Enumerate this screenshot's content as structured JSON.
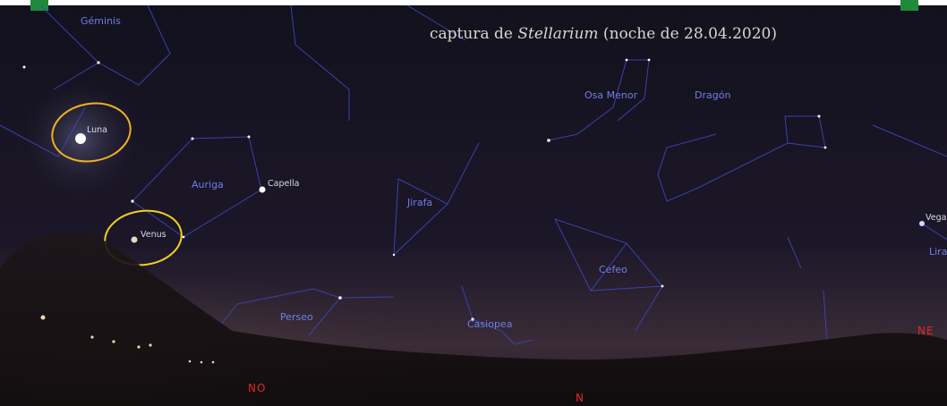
{
  "caption": {
    "prefix": "captura de ",
    "emphasis": "Stellarium",
    "suffix": " (noche de 28.04.2020)"
  },
  "constellations": [
    "Géminis",
    "Auriga",
    "Jirafa",
    "Osa Menor",
    "Dragón",
    "Cefeo",
    "Casiopea",
    "Perseo",
    "Lira"
  ],
  "objects": [
    "Luna",
    "Capella",
    "Venus",
    "Vega"
  ],
  "cardinal": [
    "NO",
    "N",
    "NE"
  ]
}
